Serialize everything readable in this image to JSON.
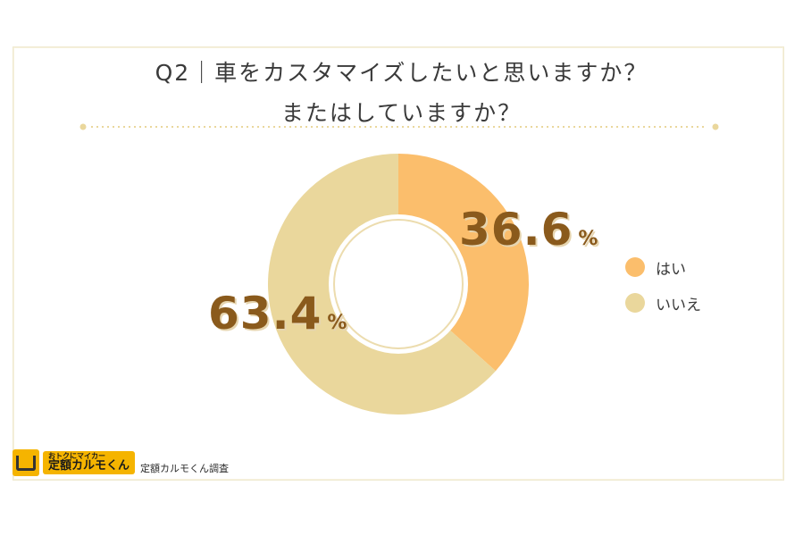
{
  "title_line1": "Q2｜車をカスタマイズしたいと思いますか？",
  "title_line2": "またはしていますか？",
  "colors": {
    "yes": "#fbbe6c",
    "no": "#ead79c",
    "label": "#8a5a1c"
  },
  "chart_data": {
    "type": "pie",
    "donut": true,
    "categories": [
      "はい",
      "いいえ"
    ],
    "values": [
      36.6,
      63.4
    ],
    "value_labels": [
      "36.6",
      "63.4"
    ],
    "unit": "%",
    "legend": "right"
  },
  "legend": [
    {
      "label": "はい",
      "color": "#fbbe6c"
    },
    {
      "label": "いいえ",
      "color": "#ead79c"
    }
  ],
  "logo": {
    "top_text": "おトクにマイカー",
    "main_text": "定額カルモくん",
    "caption": "定額カルモくん調査"
  }
}
